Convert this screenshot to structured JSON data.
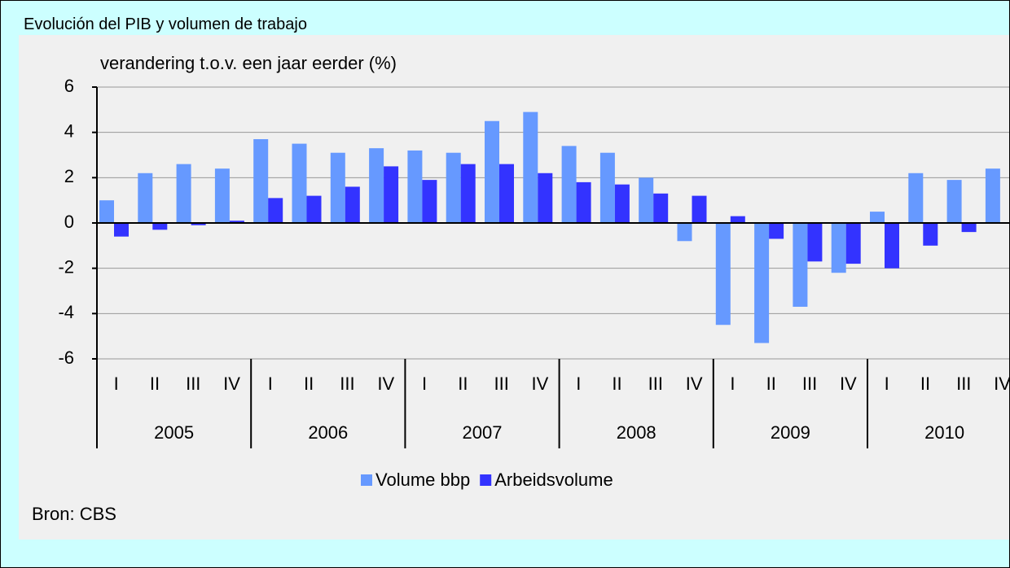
{
  "chart_data": {
    "type": "bar",
    "title": "Evolución del PIB y volumen de trabajo",
    "y_label": "verandering t.o.v. een jaar eerder (%)",
    "source": "Bron: CBS",
    "categories": [
      "I",
      "II",
      "III",
      "IV",
      "I",
      "II",
      "III",
      "IV",
      "I",
      "II",
      "III",
      "IV",
      "I",
      "II",
      "III",
      "IV",
      "I",
      "II",
      "III",
      "IV",
      "I",
      "II",
      "III",
      "IV"
    ],
    "years": [
      "2005",
      "2006",
      "2007",
      "2008",
      "2009",
      "2010"
    ],
    "series": [
      {
        "name": "Volume bbp",
        "color": "#6699ff",
        "values": [
          1.0,
          2.2,
          2.6,
          2.4,
          3.7,
          3.5,
          3.1,
          3.3,
          3.2,
          3.1,
          4.5,
          4.9,
          3.4,
          3.1,
          2.0,
          -0.8,
          -4.5,
          -5.3,
          -3.7,
          -2.2,
          0.5,
          2.2,
          1.9,
          2.4
        ]
      },
      {
        "name": "Arbeidsvolume",
        "color": "#3333ff",
        "values": [
          -0.6,
          -0.3,
          -0.1,
          0.1,
          1.1,
          1.2,
          1.6,
          2.5,
          1.9,
          2.6,
          2.6,
          2.2,
          1.8,
          1.7,
          1.3,
          1.2,
          0.3,
          -0.7,
          -1.7,
          -1.8,
          -2.0,
          -1.0,
          -0.4,
          null
        ]
      }
    ],
    "ylim": [
      -6,
      6
    ],
    "yticks": [
      -6,
      -4,
      -2,
      0,
      2,
      4,
      6
    ],
    "grid": true
  }
}
